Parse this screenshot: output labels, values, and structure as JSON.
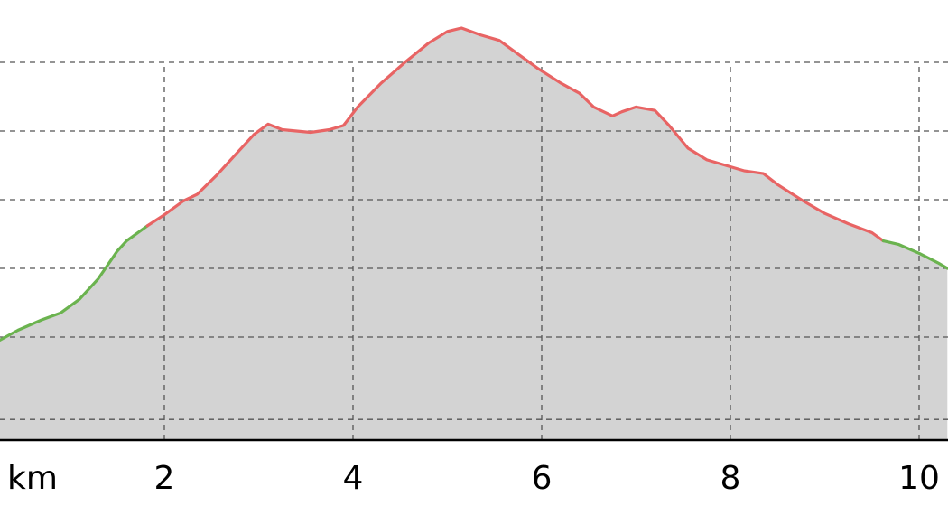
{
  "chart_data": {
    "type": "area",
    "x_unit_label": "km",
    "x_ticks": [
      2,
      4,
      6,
      8,
      10
    ],
    "xlim": [
      0.25,
      10.3
    ],
    "ylim": [
      0,
      7.6
    ],
    "y_gridlines": [
      0.3,
      1.5,
      2.5,
      3.5,
      4.5,
      5.5
    ],
    "grid": true,
    "colors": {
      "fill": "#d3d3d3",
      "moderate": "#6bb34f",
      "steep": "#e86464",
      "grid": "#555555",
      "baseline": "#000000"
    },
    "series": [
      {
        "x": [
          0.25,
          0.45,
          0.7,
          0.9,
          1.1,
          1.3,
          1.5,
          1.6,
          1.75,
          1.82,
          2.0,
          2.2,
          2.35,
          2.55,
          2.75,
          2.95,
          3.1,
          3.25,
          3.4,
          3.55,
          3.75,
          3.9,
          4.05,
          4.3,
          4.55,
          4.8,
          5.0,
          5.15,
          5.25,
          5.35,
          5.55,
          5.75,
          5.95,
          6.2,
          6.4,
          6.55,
          6.75,
          6.85,
          7.0,
          7.2,
          7.35,
          7.55,
          7.75,
          7.95,
          8.15,
          8.35,
          8.5,
          8.75,
          9.0,
          9.25,
          9.5,
          9.62,
          9.78,
          10.0,
          10.2,
          10.3
        ],
        "y": [
          1.45,
          1.6,
          1.75,
          1.85,
          2.05,
          2.35,
          2.75,
          2.9,
          3.05,
          3.12,
          3.28,
          3.48,
          3.58,
          3.85,
          4.15,
          4.45,
          4.6,
          4.52,
          4.5,
          4.48,
          4.52,
          4.58,
          4.85,
          5.2,
          5.5,
          5.78,
          5.95,
          6.0,
          5.95,
          5.9,
          5.82,
          5.62,
          5.42,
          5.2,
          5.05,
          4.85,
          4.72,
          4.78,
          4.85,
          4.8,
          4.58,
          4.25,
          4.08,
          4.0,
          3.92,
          3.88,
          3.72,
          3.5,
          3.3,
          3.15,
          3.02,
          2.9,
          2.85,
          2.72,
          2.58,
          2.5
        ],
        "grade": [
          "moderate",
          "moderate",
          "moderate",
          "moderate",
          "moderate",
          "moderate",
          "moderate",
          "moderate",
          "moderate",
          "steep",
          "steep",
          "steep",
          "steep",
          "steep",
          "steep",
          "steep",
          "steep",
          "steep",
          "steep",
          "steep",
          "steep",
          "steep",
          "steep",
          "steep",
          "steep",
          "steep",
          "steep",
          "steep",
          "steep",
          "steep",
          "steep",
          "steep",
          "steep",
          "steep",
          "steep",
          "steep",
          "steep",
          "steep",
          "steep",
          "steep",
          "steep",
          "steep",
          "steep",
          "steep",
          "steep",
          "steep",
          "steep",
          "steep",
          "steep",
          "steep",
          "steep",
          "moderate",
          "moderate",
          "moderate",
          "moderate",
          "moderate"
        ]
      }
    ]
  }
}
